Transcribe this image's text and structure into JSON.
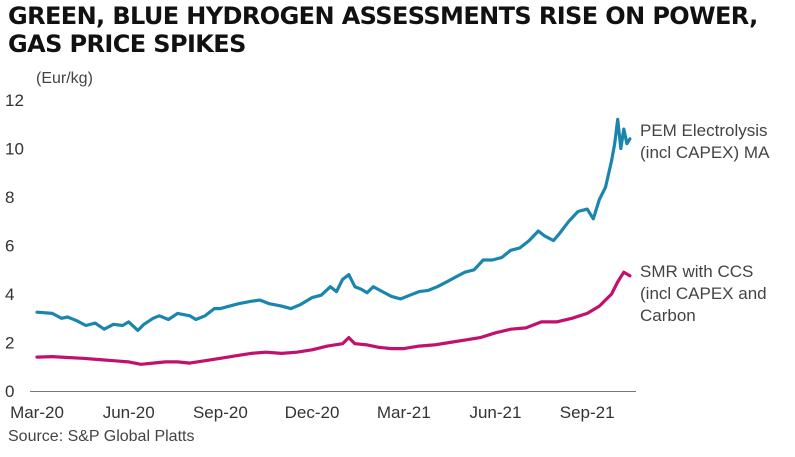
{
  "header": {
    "title_line1": "GREEN, BLUE HYDROGEN ASSESSMENTS RISE ON POWER,",
    "title_line2": "GAS PRICE SPIKES"
  },
  "footer": {
    "source": "Source: S&P Global Platts"
  },
  "colors": {
    "pem": "#1a86ad",
    "smr": "#c2106e",
    "axis": "#777777",
    "text": "#333333"
  },
  "chart_data": {
    "type": "line",
    "title": "GREEN, BLUE HYDROGEN ASSESSMENTS RISE ON POWER, GAS PRICE SPIKES",
    "ylabel": "(Eur/kg)",
    "xlabel": "",
    "ylim": [
      0,
      12
    ],
    "yticks": [
      0,
      2,
      4,
      6,
      8,
      10,
      12
    ],
    "xlim": [
      0,
      19.5
    ],
    "xticks": [
      {
        "x": 0,
        "label": "Mar-20"
      },
      {
        "x": 3,
        "label": "Jun-20"
      },
      {
        "x": 6,
        "label": "Sep-20"
      },
      {
        "x": 9,
        "label": "Dec-20"
      },
      {
        "x": 12,
        "label": "Mar-21"
      },
      {
        "x": 15,
        "label": "Jun-21"
      },
      {
        "x": 18,
        "label": "Sep-21"
      }
    ],
    "grid": false,
    "legend": "right (direct labels)",
    "series": [
      {
        "name": "PEM Electrolysis (incl CAPEX) MA",
        "label_lines": [
          "PEM Electrolysis",
          "(incl CAPEX) MA"
        ],
        "color": "#1a86ad",
        "points": [
          [
            0,
            3.25
          ],
          [
            0.5,
            3.2
          ],
          [
            0.8,
            3.0
          ],
          [
            1.0,
            3.05
          ],
          [
            1.3,
            2.9
          ],
          [
            1.6,
            2.7
          ],
          [
            1.9,
            2.8
          ],
          [
            2.2,
            2.55
          ],
          [
            2.5,
            2.75
          ],
          [
            2.8,
            2.7
          ],
          [
            3.0,
            2.85
          ],
          [
            3.3,
            2.5
          ],
          [
            3.5,
            2.75
          ],
          [
            3.8,
            3.0
          ],
          [
            4.0,
            3.1
          ],
          [
            4.3,
            2.95
          ],
          [
            4.6,
            3.2
          ],
          [
            5.0,
            3.1
          ],
          [
            5.2,
            2.95
          ],
          [
            5.5,
            3.1
          ],
          [
            5.8,
            3.4
          ],
          [
            6.0,
            3.4
          ],
          [
            6.3,
            3.5
          ],
          [
            6.6,
            3.6
          ],
          [
            7.0,
            3.7
          ],
          [
            7.3,
            3.75
          ],
          [
            7.6,
            3.6
          ],
          [
            8.0,
            3.5
          ],
          [
            8.3,
            3.4
          ],
          [
            8.6,
            3.55
          ],
          [
            9.0,
            3.85
          ],
          [
            9.3,
            3.95
          ],
          [
            9.6,
            4.3
          ],
          [
            9.8,
            4.1
          ],
          [
            10.0,
            4.6
          ],
          [
            10.2,
            4.8
          ],
          [
            10.4,
            4.3
          ],
          [
            10.6,
            4.2
          ],
          [
            10.8,
            4.05
          ],
          [
            11.0,
            4.3
          ],
          [
            11.3,
            4.1
          ],
          [
            11.6,
            3.9
          ],
          [
            11.9,
            3.8
          ],
          [
            12.2,
            3.95
          ],
          [
            12.5,
            4.1
          ],
          [
            12.8,
            4.15
          ],
          [
            13.1,
            4.3
          ],
          [
            13.4,
            4.5
          ],
          [
            13.7,
            4.7
          ],
          [
            14.0,
            4.9
          ],
          [
            14.3,
            5.0
          ],
          [
            14.6,
            5.4
          ],
          [
            14.9,
            5.4
          ],
          [
            15.2,
            5.5
          ],
          [
            15.5,
            5.8
          ],
          [
            15.8,
            5.9
          ],
          [
            16.1,
            6.2
          ],
          [
            16.4,
            6.6
          ],
          [
            16.6,
            6.4
          ],
          [
            16.9,
            6.2
          ],
          [
            17.1,
            6.5
          ],
          [
            17.4,
            7.0
          ],
          [
            17.7,
            7.4
          ],
          [
            18.0,
            7.5
          ],
          [
            18.2,
            7.1
          ],
          [
            18.4,
            7.9
          ],
          [
            18.6,
            8.4
          ],
          [
            18.8,
            9.5
          ],
          [
            18.9,
            10.2
          ],
          [
            19.0,
            11.2
          ],
          [
            19.1,
            10.0
          ],
          [
            19.2,
            10.8
          ],
          [
            19.3,
            10.2
          ],
          [
            19.4,
            10.4
          ]
        ]
      },
      {
        "name": "SMR with CCS (incl CAPEX and Carbon",
        "label_lines": [
          "SMR with CCS",
          "(incl CAPEX and",
          "Carbon"
        ],
        "color": "#c2106e",
        "points": [
          [
            0,
            1.4
          ],
          [
            0.5,
            1.42
          ],
          [
            1.0,
            1.38
          ],
          [
            1.5,
            1.35
          ],
          [
            2.0,
            1.3
          ],
          [
            2.5,
            1.25
          ],
          [
            3.0,
            1.2
          ],
          [
            3.4,
            1.1
          ],
          [
            3.8,
            1.15
          ],
          [
            4.2,
            1.2
          ],
          [
            4.6,
            1.2
          ],
          [
            5.0,
            1.15
          ],
          [
            5.5,
            1.25
          ],
          [
            6.0,
            1.35
          ],
          [
            6.5,
            1.45
          ],
          [
            7.0,
            1.55
          ],
          [
            7.5,
            1.6
          ],
          [
            8.0,
            1.55
          ],
          [
            8.5,
            1.6
          ],
          [
            9.0,
            1.7
          ],
          [
            9.5,
            1.85
          ],
          [
            10.0,
            1.95
          ],
          [
            10.2,
            2.2
          ],
          [
            10.4,
            1.95
          ],
          [
            10.8,
            1.9
          ],
          [
            11.2,
            1.8
          ],
          [
            11.6,
            1.75
          ],
          [
            12.0,
            1.75
          ],
          [
            12.5,
            1.85
          ],
          [
            13.0,
            1.9
          ],
          [
            13.5,
            2.0
          ],
          [
            14.0,
            2.1
          ],
          [
            14.5,
            2.2
          ],
          [
            15.0,
            2.4
          ],
          [
            15.5,
            2.55
          ],
          [
            16.0,
            2.6
          ],
          [
            16.5,
            2.85
          ],
          [
            17.0,
            2.85
          ],
          [
            17.5,
            3.0
          ],
          [
            18.0,
            3.2
          ],
          [
            18.4,
            3.5
          ],
          [
            18.8,
            4.0
          ],
          [
            19.0,
            4.5
          ],
          [
            19.2,
            4.9
          ],
          [
            19.4,
            4.75
          ]
        ]
      }
    ]
  }
}
